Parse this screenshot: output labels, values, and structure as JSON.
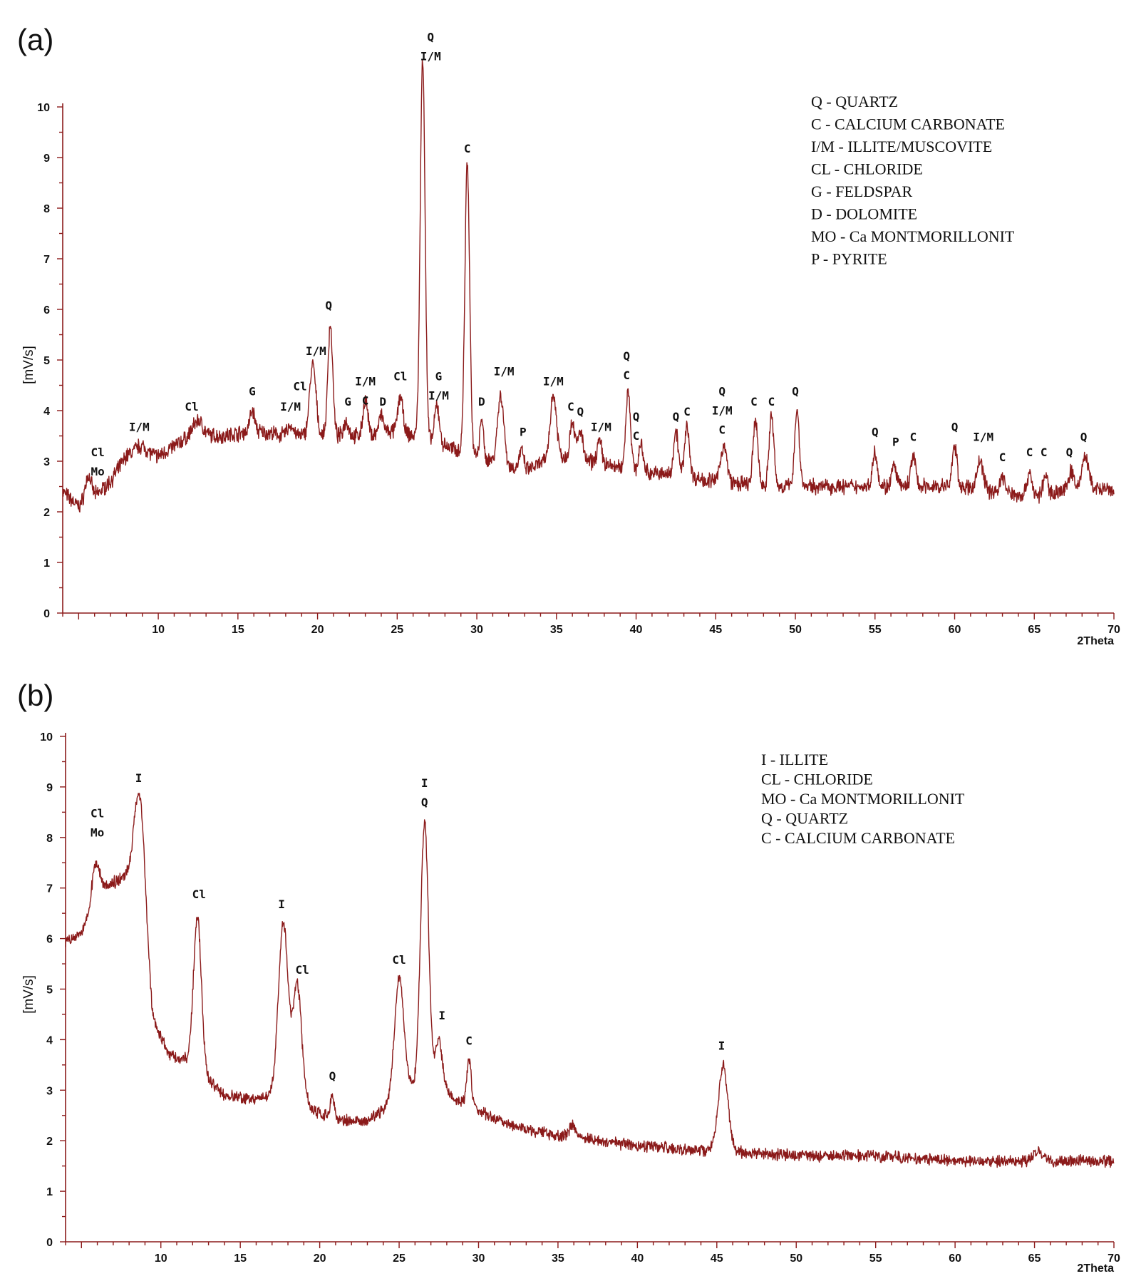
{
  "chart_data": [
    {
      "type": "line",
      "panel_label": "(a)",
      "xlabel": "2Theta",
      "ylabel": "[mV/s]",
      "xlim": [
        4,
        70
      ],
      "ylim": [
        0,
        10
      ],
      "x_ticks": [
        10,
        15,
        20,
        25,
        30,
        35,
        40,
        45,
        50,
        55,
        60,
        65,
        70
      ],
      "y_ticks": [
        0,
        1,
        2,
        3,
        4,
        5,
        6,
        7,
        8,
        9,
        10
      ],
      "line_color": "#8b1a1a",
      "baseline": [
        [
          4,
          2.4
        ],
        [
          5,
          2.1
        ],
        [
          6,
          2.3
        ],
        [
          7,
          2.6
        ],
        [
          8,
          3.1
        ],
        [
          10,
          3.1
        ],
        [
          12,
          3.5
        ],
        [
          14,
          3.5
        ],
        [
          16,
          3.6
        ],
        [
          18,
          3.5
        ],
        [
          19.5,
          3.5
        ],
        [
          21,
          3.5
        ],
        [
          23,
          3.5
        ],
        [
          25,
          3.6
        ],
        [
          27,
          3.4
        ],
        [
          29,
          3.2
        ],
        [
          31,
          3.0
        ],
        [
          33,
          2.8
        ],
        [
          35,
          3.1
        ],
        [
          37,
          3.0
        ],
        [
          40,
          2.8
        ],
        [
          43,
          2.7
        ],
        [
          45,
          2.6
        ],
        [
          48,
          2.5
        ],
        [
          50,
          2.5
        ],
        [
          55,
          2.5
        ],
        [
          60,
          2.5
        ],
        [
          65,
          2.3
        ],
        [
          68,
          2.5
        ],
        [
          70,
          2.4
        ]
      ],
      "peaks": [
        {
          "x": 5.6,
          "y": 2.7,
          "w": 0.2
        },
        {
          "x": 8.9,
          "y": 3.3,
          "w": 0.4
        },
        {
          "x": 12.5,
          "y": 3.8,
          "w": 0.3
        },
        {
          "x": 15.9,
          "y": 4.0,
          "w": 0.15
        },
        {
          "x": 18.3,
          "y": 3.7,
          "w": 0.2
        },
        {
          "x": 19.7,
          "y": 4.9,
          "w": 0.2
        },
        {
          "x": 20.8,
          "y": 5.7,
          "w": 0.15
        },
        {
          "x": 21.8,
          "y": 3.8,
          "w": 0.15
        },
        {
          "x": 23.0,
          "y": 4.2,
          "w": 0.15
        },
        {
          "x": 24.0,
          "y": 3.9,
          "w": 0.15
        },
        {
          "x": 25.2,
          "y": 4.3,
          "w": 0.15
        },
        {
          "x": 26.6,
          "y": 11.0,
          "w": 0.15
        },
        {
          "x": 27.5,
          "y": 4.1,
          "w": 0.15
        },
        {
          "x": 29.4,
          "y": 8.9,
          "w": 0.15
        },
        {
          "x": 30.3,
          "y": 3.9,
          "w": 0.1
        },
        {
          "x": 31.5,
          "y": 4.3,
          "w": 0.2
        },
        {
          "x": 32.8,
          "y": 3.2,
          "w": 0.15
        },
        {
          "x": 34.8,
          "y": 4.3,
          "w": 0.2
        },
        {
          "x": 36.0,
          "y": 3.8,
          "w": 0.15
        },
        {
          "x": 36.5,
          "y": 3.6,
          "w": 0.15
        },
        {
          "x": 37.7,
          "y": 3.4,
          "w": 0.15
        },
        {
          "x": 39.5,
          "y": 4.4,
          "w": 0.15
        },
        {
          "x": 40.3,
          "y": 3.3,
          "w": 0.15
        },
        {
          "x": 42.5,
          "y": 3.6,
          "w": 0.15
        },
        {
          "x": 43.2,
          "y": 3.7,
          "w": 0.15
        },
        {
          "x": 45.5,
          "y": 3.3,
          "w": 0.2
        },
        {
          "x": 47.5,
          "y": 3.8,
          "w": 0.15
        },
        {
          "x": 48.5,
          "y": 3.9,
          "w": 0.15
        },
        {
          "x": 50.1,
          "y": 4.0,
          "w": 0.15
        },
        {
          "x": 55.0,
          "y": 3.2,
          "w": 0.15
        },
        {
          "x": 56.2,
          "y": 2.9,
          "w": 0.15
        },
        {
          "x": 57.4,
          "y": 3.1,
          "w": 0.15
        },
        {
          "x": 60.0,
          "y": 3.3,
          "w": 0.15
        },
        {
          "x": 61.6,
          "y": 3.0,
          "w": 0.2
        },
        {
          "x": 63.0,
          "y": 2.7,
          "w": 0.15
        },
        {
          "x": 64.7,
          "y": 2.8,
          "w": 0.15
        },
        {
          "x": 65.7,
          "y": 2.7,
          "w": 0.15
        },
        {
          "x": 67.3,
          "y": 2.8,
          "w": 0.15
        },
        {
          "x": 68.2,
          "y": 3.1,
          "w": 0.2
        }
      ],
      "noise": 0.12,
      "annotations": [
        {
          "x": 6.2,
          "y": 3.1,
          "lines": [
            "Cl",
            "Mo"
          ]
        },
        {
          "x": 8.8,
          "y": 3.6,
          "lines": [
            "I/M"
          ]
        },
        {
          "x": 12.1,
          "y": 4.0,
          "lines": [
            "Cl"
          ]
        },
        {
          "x": 15.9,
          "y": 4.3,
          "lines": [
            "G"
          ]
        },
        {
          "x": 18.3,
          "y": 4.0,
          "lines": [
            "I/M"
          ]
        },
        {
          "x": 18.9,
          "y": 4.4,
          "lines": [
            "Cl"
          ]
        },
        {
          "x": 19.9,
          "y": 5.1,
          "lines": [
            "I/M"
          ]
        },
        {
          "x": 20.7,
          "y": 6.0,
          "lines": [
            "Q"
          ]
        },
        {
          "x": 21.9,
          "y": 4.1,
          "lines": [
            "G"
          ]
        },
        {
          "x": 23.0,
          "y": 4.5,
          "lines": [
            "I/M",
            "C"
          ]
        },
        {
          "x": 24.1,
          "y": 4.1,
          "lines": [
            "D"
          ]
        },
        {
          "x": 25.2,
          "y": 4.6,
          "lines": [
            "Cl"
          ]
        },
        {
          "x": 27.1,
          "y": 11.3,
          "lines": [
            "Q",
            "I/M"
          ]
        },
        {
          "x": 27.6,
          "y": 4.6,
          "lines": [
            "G",
            "I/M"
          ]
        },
        {
          "x": 29.4,
          "y": 9.1,
          "lines": [
            "C"
          ]
        },
        {
          "x": 30.3,
          "y": 4.1,
          "lines": [
            "D"
          ]
        },
        {
          "x": 31.7,
          "y": 4.7,
          "lines": [
            "I/M"
          ]
        },
        {
          "x": 32.9,
          "y": 3.5,
          "lines": [
            "P"
          ]
        },
        {
          "x": 34.8,
          "y": 4.5,
          "lines": [
            "I/M"
          ]
        },
        {
          "x": 35.9,
          "y": 4.0,
          "lines": [
            "C"
          ]
        },
        {
          "x": 36.5,
          "y": 3.9,
          "lines": [
            "Q"
          ]
        },
        {
          "x": 37.8,
          "y": 3.6,
          "lines": [
            "I/M"
          ]
        },
        {
          "x": 39.4,
          "y": 5.0,
          "lines": [
            "Q",
            "C"
          ]
        },
        {
          "x": 40.0,
          "y": 3.8,
          "lines": [
            "Q",
            "C"
          ]
        },
        {
          "x": 42.5,
          "y": 3.8,
          "lines": [
            "Q"
          ]
        },
        {
          "x": 43.2,
          "y": 3.9,
          "lines": [
            "C"
          ]
        },
        {
          "x": 45.4,
          "y": 4.3,
          "lines": [
            "Q",
            "I/M",
            "C"
          ]
        },
        {
          "x": 47.4,
          "y": 4.1,
          "lines": [
            "C"
          ]
        },
        {
          "x": 48.5,
          "y": 4.1,
          "lines": [
            "C"
          ]
        },
        {
          "x": 50.0,
          "y": 4.3,
          "lines": [
            "Q"
          ]
        },
        {
          "x": 55.0,
          "y": 3.5,
          "lines": [
            "Q"
          ]
        },
        {
          "x": 56.3,
          "y": 3.3,
          "lines": [
            "P"
          ]
        },
        {
          "x": 57.4,
          "y": 3.4,
          "lines": [
            "C"
          ]
        },
        {
          "x": 60.0,
          "y": 3.6,
          "lines": [
            "Q"
          ]
        },
        {
          "x": 61.8,
          "y": 3.4,
          "lines": [
            "I/M"
          ]
        },
        {
          "x": 63.0,
          "y": 3.0,
          "lines": [
            "C"
          ]
        },
        {
          "x": 64.7,
          "y": 3.1,
          "lines": [
            "C"
          ]
        },
        {
          "x": 65.6,
          "y": 3.1,
          "lines": [
            "C"
          ]
        },
        {
          "x": 67.2,
          "y": 3.1,
          "lines": [
            "Q"
          ]
        },
        {
          "x": 68.1,
          "y": 3.4,
          "lines": [
            "Q"
          ]
        }
      ],
      "legend": [
        "Q - QUARTZ",
        "C - CALCIUM CARBONATE",
        "I/M - ILLITE/MUSCOVITE",
        "CL - CHLORIDE",
        "G - FELDSPAR",
        "D - DOLOMITE",
        "MO - Ca MONTMORILLONIT",
        "P - PYRITE"
      ],
      "legend_position": "top-right"
    },
    {
      "type": "line",
      "panel_label": "(b)",
      "xlabel": "2Theta",
      "ylabel": "[mV/s]",
      "xlim": [
        4,
        70
      ],
      "ylim": [
        0,
        10
      ],
      "x_ticks": [
        10,
        15,
        20,
        25,
        30,
        35,
        40,
        45,
        50,
        55,
        60,
        65,
        70
      ],
      "y_ticks": [
        0,
        1,
        2,
        3,
        4,
        5,
        6,
        7,
        8,
        9,
        10
      ],
      "line_color": "#8b1a1a",
      "baseline": [
        [
          4,
          5.9
        ],
        [
          4.5,
          6.0
        ],
        [
          5,
          6.1
        ],
        [
          5.6,
          6.5
        ],
        [
          6.5,
          7.0
        ],
        [
          7.5,
          7.2
        ],
        [
          8.3,
          7.4
        ],
        [
          9.0,
          6.0
        ],
        [
          9.5,
          4.4
        ],
        [
          10.5,
          3.7
        ],
        [
          11.5,
          3.6
        ],
        [
          13,
          3.2
        ],
        [
          14,
          2.9
        ],
        [
          16,
          2.8
        ],
        [
          17,
          2.9
        ],
        [
          18.5,
          3.3
        ],
        [
          19.5,
          2.6
        ],
        [
          21,
          2.4
        ],
        [
          23,
          2.4
        ],
        [
          24,
          2.6
        ],
        [
          25.5,
          3.0
        ],
        [
          27.5,
          3.2
        ],
        [
          28.5,
          2.8
        ],
        [
          30,
          2.6
        ],
        [
          32,
          2.3
        ],
        [
          35,
          2.1
        ],
        [
          40,
          1.9
        ],
        [
          45,
          1.8
        ],
        [
          50,
          1.7
        ],
        [
          55,
          1.7
        ],
        [
          60,
          1.6
        ],
        [
          65,
          1.6
        ],
        [
          70,
          1.6
        ]
      ],
      "peaks": [
        {
          "x": 5.9,
          "y": 7.5,
          "w": 0.25
        },
        {
          "x": 8.7,
          "y": 8.8,
          "w": 0.3
        },
        {
          "x": 12.3,
          "y": 6.4,
          "w": 0.25
        },
        {
          "x": 17.7,
          "y": 6.3,
          "w": 0.3
        },
        {
          "x": 18.6,
          "y": 5.1,
          "w": 0.25
        },
        {
          "x": 20.8,
          "y": 2.9,
          "w": 0.12
        },
        {
          "x": 25.0,
          "y": 5.2,
          "w": 0.3
        },
        {
          "x": 26.6,
          "y": 8.3,
          "w": 0.25
        },
        {
          "x": 27.5,
          "y": 4.0,
          "w": 0.2
        },
        {
          "x": 29.4,
          "y": 3.6,
          "w": 0.15
        },
        {
          "x": 35.9,
          "y": 2.3,
          "w": 0.2
        },
        {
          "x": 45.4,
          "y": 3.5,
          "w": 0.3
        },
        {
          "x": 65.2,
          "y": 1.8,
          "w": 0.3
        }
      ],
      "noise": 0.09,
      "annotations": [
        {
          "x": 6.0,
          "y": 8.4,
          "lines": [
            "Cl",
            "Mo"
          ]
        },
        {
          "x": 8.6,
          "y": 9.1,
          "lines": [
            "I"
          ]
        },
        {
          "x": 12.4,
          "y": 6.8,
          "lines": [
            "Cl"
          ]
        },
        {
          "x": 17.6,
          "y": 6.6,
          "lines": [
            "I"
          ]
        },
        {
          "x": 18.9,
          "y": 5.3,
          "lines": [
            "Cl"
          ]
        },
        {
          "x": 20.8,
          "y": 3.2,
          "lines": [
            "Q"
          ]
        },
        {
          "x": 25.0,
          "y": 5.5,
          "lines": [
            "Cl"
          ]
        },
        {
          "x": 26.6,
          "y": 9.0,
          "lines": [
            "I",
            "Q"
          ]
        },
        {
          "x": 27.7,
          "y": 4.4,
          "lines": [
            "I"
          ]
        },
        {
          "x": 29.4,
          "y": 3.9,
          "lines": [
            "C"
          ]
        },
        {
          "x": 45.3,
          "y": 3.8,
          "lines": [
            "I"
          ]
        }
      ],
      "legend": [
        "I - ILLITE",
        "CL - CHLORIDE",
        "MO - Ca MONTMORILLONIT",
        "Q - QUARTZ",
        "C - CALCIUM CARBONATE"
      ],
      "legend_position": "top-right"
    }
  ]
}
